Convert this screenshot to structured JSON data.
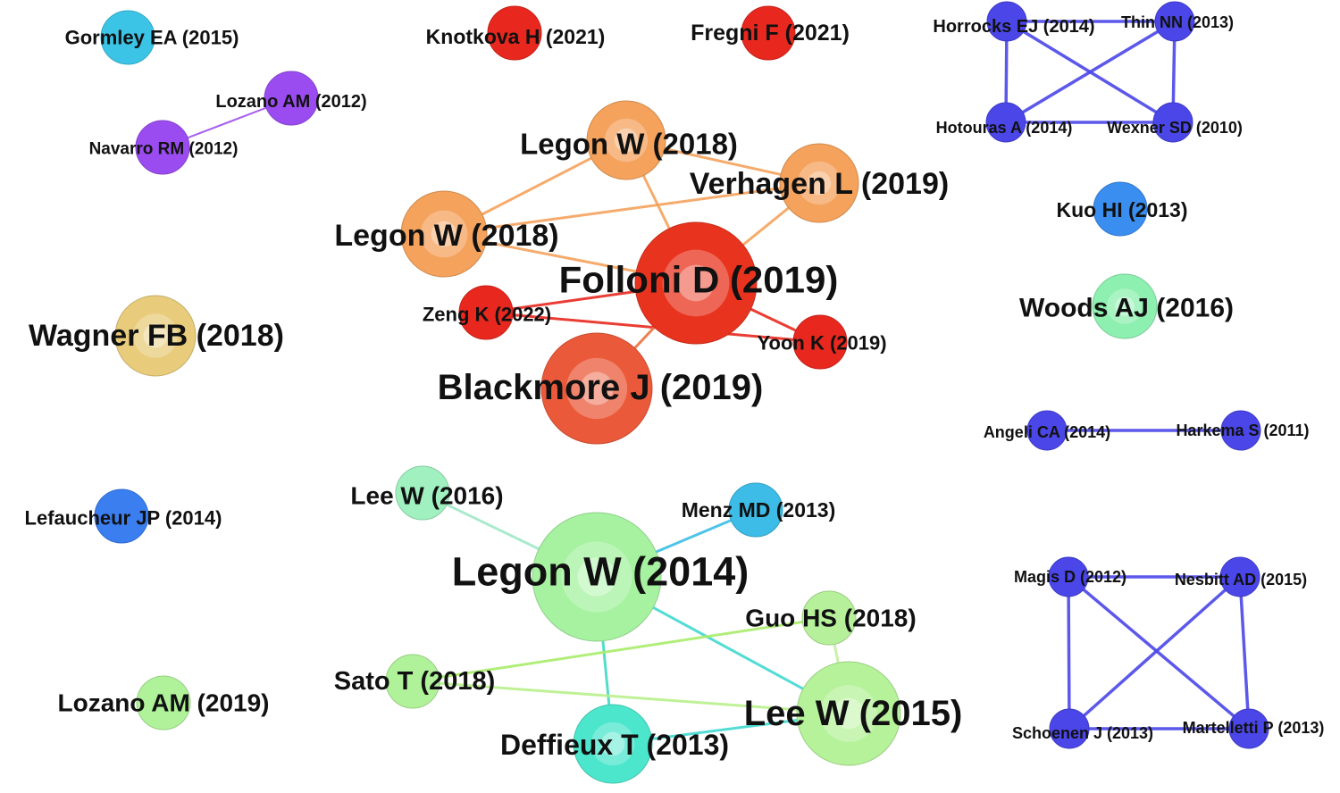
{
  "nodes": [
    {
      "id": "gormley2015",
      "label": "Gormley EA (2015)",
      "color": "#3cc4e6",
      "size": "small"
    },
    {
      "id": "knotkova2021",
      "label": "Knotkova H (2021)",
      "color": "#e8281e",
      "size": "small"
    },
    {
      "id": "fregni2021",
      "label": "Fregni F (2021)",
      "color": "#e8281e",
      "size": "small"
    },
    {
      "id": "horrocks2014",
      "label": "Horrocks EJ (2014)",
      "color": "#4a46e8",
      "size": "xsmall"
    },
    {
      "id": "thin2013",
      "label": "Thin NN (2013)",
      "color": "#4a46e8",
      "size": "xsmall"
    },
    {
      "id": "hotouras2014",
      "label": "Hotouras A (2014)",
      "color": "#4a46e8",
      "size": "xsmall"
    },
    {
      "id": "wexner2010",
      "label": "Wexner SD (2010)",
      "color": "#4a46e8",
      "size": "xsmall"
    },
    {
      "id": "lozano2012",
      "label": "Lozano AM (2012)",
      "color": "#9b4cf0",
      "size": "small"
    },
    {
      "id": "navarro2012",
      "label": "Navarro RM (2012)",
      "color": "#9b4cf0",
      "size": "small"
    },
    {
      "id": "legon2018a",
      "label": "Legon W (2018)",
      "color": "#f4a25c",
      "size": "medium"
    },
    {
      "id": "verhagen2019",
      "label": "Verhagen L (2019)",
      "color": "#f4a25c",
      "size": "medium"
    },
    {
      "id": "legon2018b",
      "label": "Legon W (2018)",
      "color": "#f4a25c",
      "size": "medium"
    },
    {
      "id": "folloni2019",
      "label": "Folloni D (2019)",
      "color": "#e8341e",
      "size": "large"
    },
    {
      "id": "zeng2022",
      "label": "Zeng K (2022)",
      "color": "#e8281e",
      "size": "small"
    },
    {
      "id": "yoon2019",
      "label": "Yoon K (2019)",
      "color": "#e8281e",
      "size": "small"
    },
    {
      "id": "blackmore2019",
      "label": "Blackmore J (2019)",
      "color": "#ea5a3a",
      "size": "large"
    },
    {
      "id": "wagner2018",
      "label": "Wagner FB (2018)",
      "color": "#e8cc7c",
      "size": "medium"
    },
    {
      "id": "kuo2013",
      "label": "Kuo HI (2013)",
      "color": "#3a8ef0",
      "size": "small"
    },
    {
      "id": "woods2016",
      "label": "Woods AJ (2016)",
      "color": "#8ef0b0",
      "size": "medium"
    },
    {
      "id": "angeli2014",
      "label": "Angeli CA (2014)",
      "color": "#4a46e8",
      "size": "xsmall"
    },
    {
      "id": "harkema2011",
      "label": "Harkema S (2011)",
      "color": "#4a46e8",
      "size": "xsmall"
    },
    {
      "id": "lee2016",
      "label": "Lee W (2016)",
      "color": "#a0f0c0",
      "size": "small"
    },
    {
      "id": "menz2013",
      "label": "Menz MD (2013)",
      "color": "#3cbce6",
      "size": "small"
    },
    {
      "id": "lefaucheur2014",
      "label": "Lefaucheur JP (2014)",
      "color": "#3a7ef0",
      "size": "small"
    },
    {
      "id": "legon2014",
      "label": "Legon W (2014)",
      "color": "#a6f2a0",
      "size": "large"
    },
    {
      "id": "guo2018",
      "label": "Guo HS (2018)",
      "color": "#b6f09a",
      "size": "small"
    },
    {
      "id": "sato2018",
      "label": "Sato T (2018)",
      "color": "#b0f29a",
      "size": "small"
    },
    {
      "id": "lozano2019",
      "label": "Lozano AM (2019)",
      "color": "#b0f29a",
      "size": "small"
    },
    {
      "id": "deffieux2013",
      "label": "Deffieux T (2013)",
      "color": "#4ce6cc",
      "size": "medium"
    },
    {
      "id": "lee2015",
      "label": "Lee W (2015)",
      "color": "#b6f29a",
      "size": "large"
    },
    {
      "id": "magis2012",
      "label": "Magis D (2012)",
      "color": "#4a46e8",
      "size": "xsmall"
    },
    {
      "id": "nesbitt2015",
      "label": "Nesbitt AD (2015)",
      "color": "#4a46e8",
      "size": "xsmall"
    },
    {
      "id": "schoenen2013",
      "label": "Schoenen J (2013)",
      "color": "#4a46e8",
      "size": "xsmall"
    },
    {
      "id": "martelletti2013",
      "label": "Martelletti P (2013)",
      "color": "#4a46e8",
      "size": "xsmall"
    }
  ],
  "edges": [
    {
      "from": "horrocks2014",
      "to": "thin2013",
      "color": "#4a46e8"
    },
    {
      "from": "horrocks2014",
      "to": "hotouras2014",
      "color": "#4a46e8"
    },
    {
      "from": "horrocks2014",
      "to": "wexner2010",
      "color": "#4a46e8"
    },
    {
      "from": "thin2013",
      "to": "hotouras2014",
      "color": "#4a46e8"
    },
    {
      "from": "thin2013",
      "to": "wexner2010",
      "color": "#4a46e8"
    },
    {
      "from": "hotouras2014",
      "to": "wexner2010",
      "color": "#4a46e8"
    },
    {
      "from": "lozano2012",
      "to": "navarro2012",
      "color": "#9b4cf0"
    },
    {
      "from": "legon2018a",
      "to": "verhagen2019",
      "color": "#f4a25c"
    },
    {
      "from": "legon2018a",
      "to": "legon2018b",
      "color": "#f4a25c"
    },
    {
      "from": "legon2018a",
      "to": "folloni2019",
      "color": "#f4a25c"
    },
    {
      "from": "legon2018b",
      "to": "verhagen2019",
      "color": "#f4a25c"
    },
    {
      "from": "legon2018b",
      "to": "folloni2019",
      "color": "#f4a25c"
    },
    {
      "from": "verhagen2019",
      "to": "folloni2019",
      "color": "#f4a25c"
    },
    {
      "from": "zeng2022",
      "to": "folloni2019",
      "color": "#e8281e"
    },
    {
      "from": "zeng2022",
      "to": "yoon2019",
      "color": "#e8281e"
    },
    {
      "from": "folloni2019",
      "to": "yoon2019",
      "color": "#e8281e"
    },
    {
      "from": "folloni2019",
      "to": "blackmore2019",
      "color": "#ee7040"
    },
    {
      "from": "angeli2014",
      "to": "harkema2011",
      "color": "#4a46e8"
    },
    {
      "from": "legon2014",
      "to": "lee2016",
      "color": "#a0e8c8"
    },
    {
      "from": "legon2014",
      "to": "menz2013",
      "color": "#3cbce6"
    },
    {
      "from": "legon2014",
      "to": "deffieux2013",
      "color": "#40d8c4"
    },
    {
      "from": "legon2014",
      "to": "lee2015",
      "color": "#40d8d0"
    },
    {
      "from": "sato2018",
      "to": "guo2018",
      "color": "#a8ec6a"
    },
    {
      "from": "sato2018",
      "to": "lee2015",
      "color": "#b8f08c"
    },
    {
      "from": "guo2018",
      "to": "lee2015",
      "color": "#c4f0a0"
    },
    {
      "from": "deffieux2013",
      "to": "lee2015",
      "color": "#40d8d0"
    },
    {
      "from": "magis2012",
      "to": "nesbitt2015",
      "color": "#4a46e8"
    },
    {
      "from": "magis2012",
      "to": "schoenen2013",
      "color": "#4a46e8"
    },
    {
      "from": "magis2012",
      "to": "martelletti2013",
      "color": "#4a46e8"
    },
    {
      "from": "nesbitt2015",
      "to": "schoenen2013",
      "color": "#4a46e8"
    },
    {
      "from": "nesbitt2015",
      "to": "martelletti2013",
      "color": "#4a46e8"
    },
    {
      "from": "schoenen2013",
      "to": "martelletti2013",
      "color": "#4a46e8"
    }
  ]
}
